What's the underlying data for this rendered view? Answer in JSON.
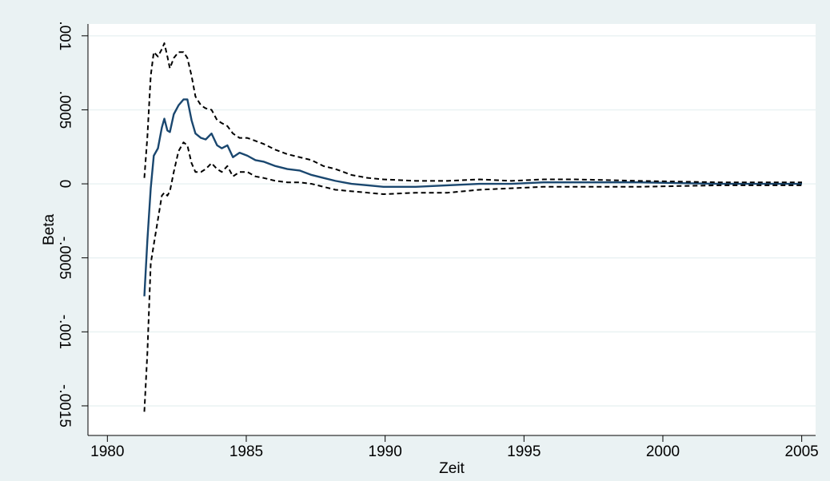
{
  "chart_data": {
    "type": "line",
    "xlabel": "Zeit",
    "ylabel": "Beta",
    "x": [
      1981.33,
      1981.44,
      1981.56,
      1981.67,
      1981.82,
      1981.96,
      1982.05,
      1982.16,
      1982.25,
      1982.39,
      1982.56,
      1982.74,
      1982.88,
      1983.03,
      1983.17,
      1983.37,
      1983.54,
      1983.75,
      1983.95,
      1984.12,
      1984.32,
      1984.52,
      1984.76,
      1985.04,
      1985.33,
      1985.62,
      1986.05,
      1986.48,
      1986.92,
      1987.35,
      1987.78,
      1988.21,
      1988.79,
      1989.37,
      1989.94,
      1991.1,
      1992.25,
      1993.4,
      1994.55,
      1995.7,
      1996.86,
      1999.16,
      2002.04,
      2005.01
    ],
    "series": [
      {
        "color": "#1a476f",
        "dashed": false,
        "values": [
          -0.00076,
          -0.00038,
          -3e-05,
          0.00019,
          0.00024,
          0.00038,
          0.00044,
          0.00036,
          0.00035,
          0.00047,
          0.00053,
          0.00057,
          0.00057,
          0.00043,
          0.00034,
          0.00031,
          0.0003,
          0.00034,
          0.00026,
          0.00024,
          0.00026,
          0.00018,
          0.00021,
          0.00019,
          0.00016,
          0.00015,
          0.00012,
          0.0001,
          9e-05,
          6e-05,
          4e-05,
          2e-05,
          0,
          -1e-05,
          -2e-05,
          -2e-05,
          -1e-05,
          0,
          0,
          1e-05,
          1e-05,
          1e-05,
          0,
          0
        ]
      },
      {
        "color": "#000000",
        "dashed": true,
        "values": [
          4e-05,
          0.00032,
          0.00073,
          0.00089,
          0.00086,
          0.00091,
          0.00095,
          0.00086,
          0.00078,
          0.00085,
          0.00089,
          0.00089,
          0.00085,
          0.00073,
          0.00059,
          0.00053,
          0.00051,
          0.0005,
          0.00043,
          0.00041,
          0.00039,
          0.00034,
          0.00031,
          0.00031,
          0.00029,
          0.00027,
          0.00023,
          0.0002,
          0.00018,
          0.00016,
          0.00012,
          0.0001,
          6e-05,
          4e-05,
          3e-05,
          2e-05,
          2e-05,
          3e-05,
          2e-05,
          3e-05,
          3e-05,
          2e-05,
          1e-05,
          1e-05
        ]
      },
      {
        "color": "#000000",
        "dashed": true,
        "values": [
          -0.00154,
          -0.00114,
          -0.00054,
          -0.00041,
          -0.00024,
          -8e-05,
          -6e-05,
          -8e-05,
          -5e-05,
          8e-05,
          0.00022,
          0.00028,
          0.00026,
          0.00014,
          8e-05,
          8e-05,
          0.0001,
          0.00014,
          0.0001,
          8e-05,
          0.00012,
          5e-05,
          8e-05,
          8e-05,
          5e-05,
          4e-05,
          2e-05,
          1e-05,
          1e-05,
          0,
          -2e-05,
          -4e-05,
          -5e-05,
          -6e-05,
          -7e-05,
          -6e-05,
          -6e-05,
          -4e-05,
          -3e-05,
          -2e-05,
          -2e-05,
          -2e-05,
          -1e-05,
          -1e-05
        ]
      }
    ],
    "xlim": [
      1979.3,
      2005.5
    ],
    "xticks": [
      1980,
      1985,
      1990,
      1995,
      2000,
      2005
    ],
    "ylim": [
      -0.0017,
      0.00108
    ],
    "yticks": [
      {
        "value": -0.0015,
        "label": "-.0015"
      },
      {
        "value": -0.001,
        "label": "-.001"
      },
      {
        "value": -0.0005,
        "label": "-.0005"
      },
      0,
      {
        "value": 0.0005,
        "label": ".0005"
      },
      {
        "value": 0.001,
        "label": ".001"
      }
    ],
    "grid": true
  }
}
